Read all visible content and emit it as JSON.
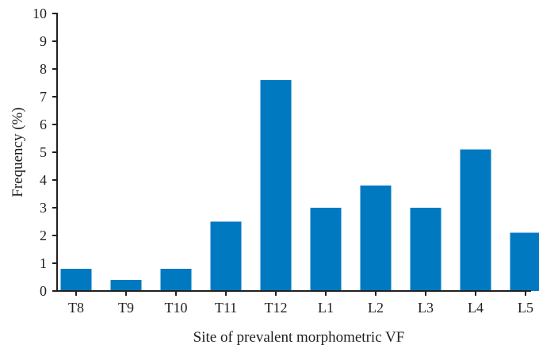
{
  "chart_data": {
    "type": "bar",
    "title": "",
    "xlabel": "Site of prevalent morphometric VF",
    "ylabel": "Frequency (%)",
    "categories": [
      "T8",
      "T9",
      "T10",
      "T11",
      "T12",
      "L1",
      "L2",
      "L3",
      "L4",
      "L5"
    ],
    "values": [
      0.8,
      0.4,
      0.8,
      2.5,
      7.6,
      3.0,
      3.8,
      3.0,
      5.1,
      2.1
    ],
    "ylim": [
      0,
      10
    ],
    "yticks": [
      "0",
      "1",
      "2",
      "3",
      "4",
      "5",
      "6",
      "7",
      "8",
      "9",
      "10"
    ],
    "grid": false,
    "bar_color": "#0079c1"
  }
}
